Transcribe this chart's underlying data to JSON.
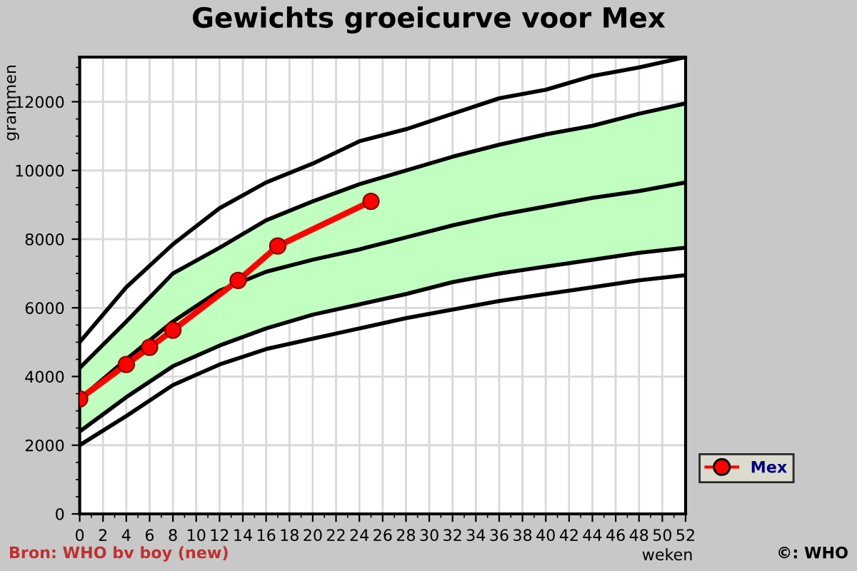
{
  "chart_data": {
    "type": "line",
    "title": "Gewichts groeicurve voor Mex",
    "xlabel": "weken",
    "ylabel": "grammen",
    "annotations": [
      "Bron: WHO bv boy (new)",
      "©: WHO"
    ],
    "xlim": [
      0,
      52
    ],
    "xticks": [
      0,
      2,
      4,
      6,
      8,
      10,
      12,
      14,
      16,
      18,
      20,
      22,
      24,
      26,
      28,
      30,
      32,
      34,
      36,
      38,
      40,
      42,
      44,
      46,
      48,
      50,
      52
    ],
    "ylim": [
      0,
      13300
    ],
    "yticks": [
      0,
      2000,
      4000,
      6000,
      8000,
      10000,
      12000
    ],
    "grid": true,
    "legend": "right",
    "series": [
      {
        "color": "#000000",
        "marker": "none",
        "x": [
          0,
          4,
          8,
          12,
          16,
          20,
          24,
          28,
          32,
          36,
          40,
          44,
          48,
          52
        ],
        "values": [
          5000,
          6600,
          7850,
          8900,
          9650,
          10200,
          10850,
          11200,
          11650,
          12100,
          12350,
          12750,
          13000,
          13300
        ]
      },
      {
        "color": "#000000",
        "marker": "none",
        "x": [
          0,
          4,
          8,
          12,
          16,
          20,
          24,
          28,
          32,
          36,
          40,
          44,
          48,
          52
        ],
        "values": [
          4250,
          5600,
          7000,
          7750,
          8550,
          9100,
          9600,
          10000,
          10400,
          10750,
          11050,
          11300,
          11650,
          11950
        ]
      },
      {
        "color": "#000000",
        "marker": "none",
        "x": [
          0,
          4,
          8,
          12,
          16,
          20,
          24,
          28,
          32,
          36,
          40,
          44,
          48,
          52
        ],
        "values": [
          3350,
          4500,
          5600,
          6500,
          7050,
          7400,
          7700,
          8050,
          8400,
          8700,
          8950,
          9200,
          9400,
          9650
        ],
        "lower": [
          2400,
          3400,
          4300,
          4900,
          5400,
          5800,
          6100,
          6400,
          6750,
          7000,
          7200,
          7400,
          7600,
          7750
        ],
        "upper": [
          4250,
          5600,
          7000,
          7750,
          8550,
          9100,
          9600,
          10000,
          10400,
          10750,
          11050,
          11300,
          11650,
          11950
        ]
      },
      {
        "color": "#000000",
        "marker": "none",
        "x": [
          0,
          4,
          8,
          12,
          16,
          20,
          24,
          28,
          32,
          36,
          40,
          44,
          48,
          52
        ],
        "values": [
          2400,
          3400,
          4300,
          4900,
          5400,
          5800,
          6100,
          6400,
          6750,
          7000,
          7200,
          7400,
          7600,
          7750
        ]
      },
      {
        "color": "#000000",
        "marker": "none",
        "x": [
          0,
          4,
          8,
          12,
          16,
          20,
          24,
          28,
          32,
          36,
          40,
          44,
          48,
          52
        ],
        "values": [
          2000,
          2850,
          3750,
          4350,
          4800,
          5100,
          5400,
          5700,
          5950,
          6200,
          6400,
          6600,
          6800,
          6950
        ]
      },
      {
        "name": "Mex",
        "color": "#ff0000",
        "marker": "circle",
        "x": [
          0,
          4,
          6,
          8,
          13.6,
          17,
          25
        ],
        "values": [
          3350,
          4350,
          4850,
          5350,
          6800,
          7800,
          9100
        ]
      }
    ]
  }
}
